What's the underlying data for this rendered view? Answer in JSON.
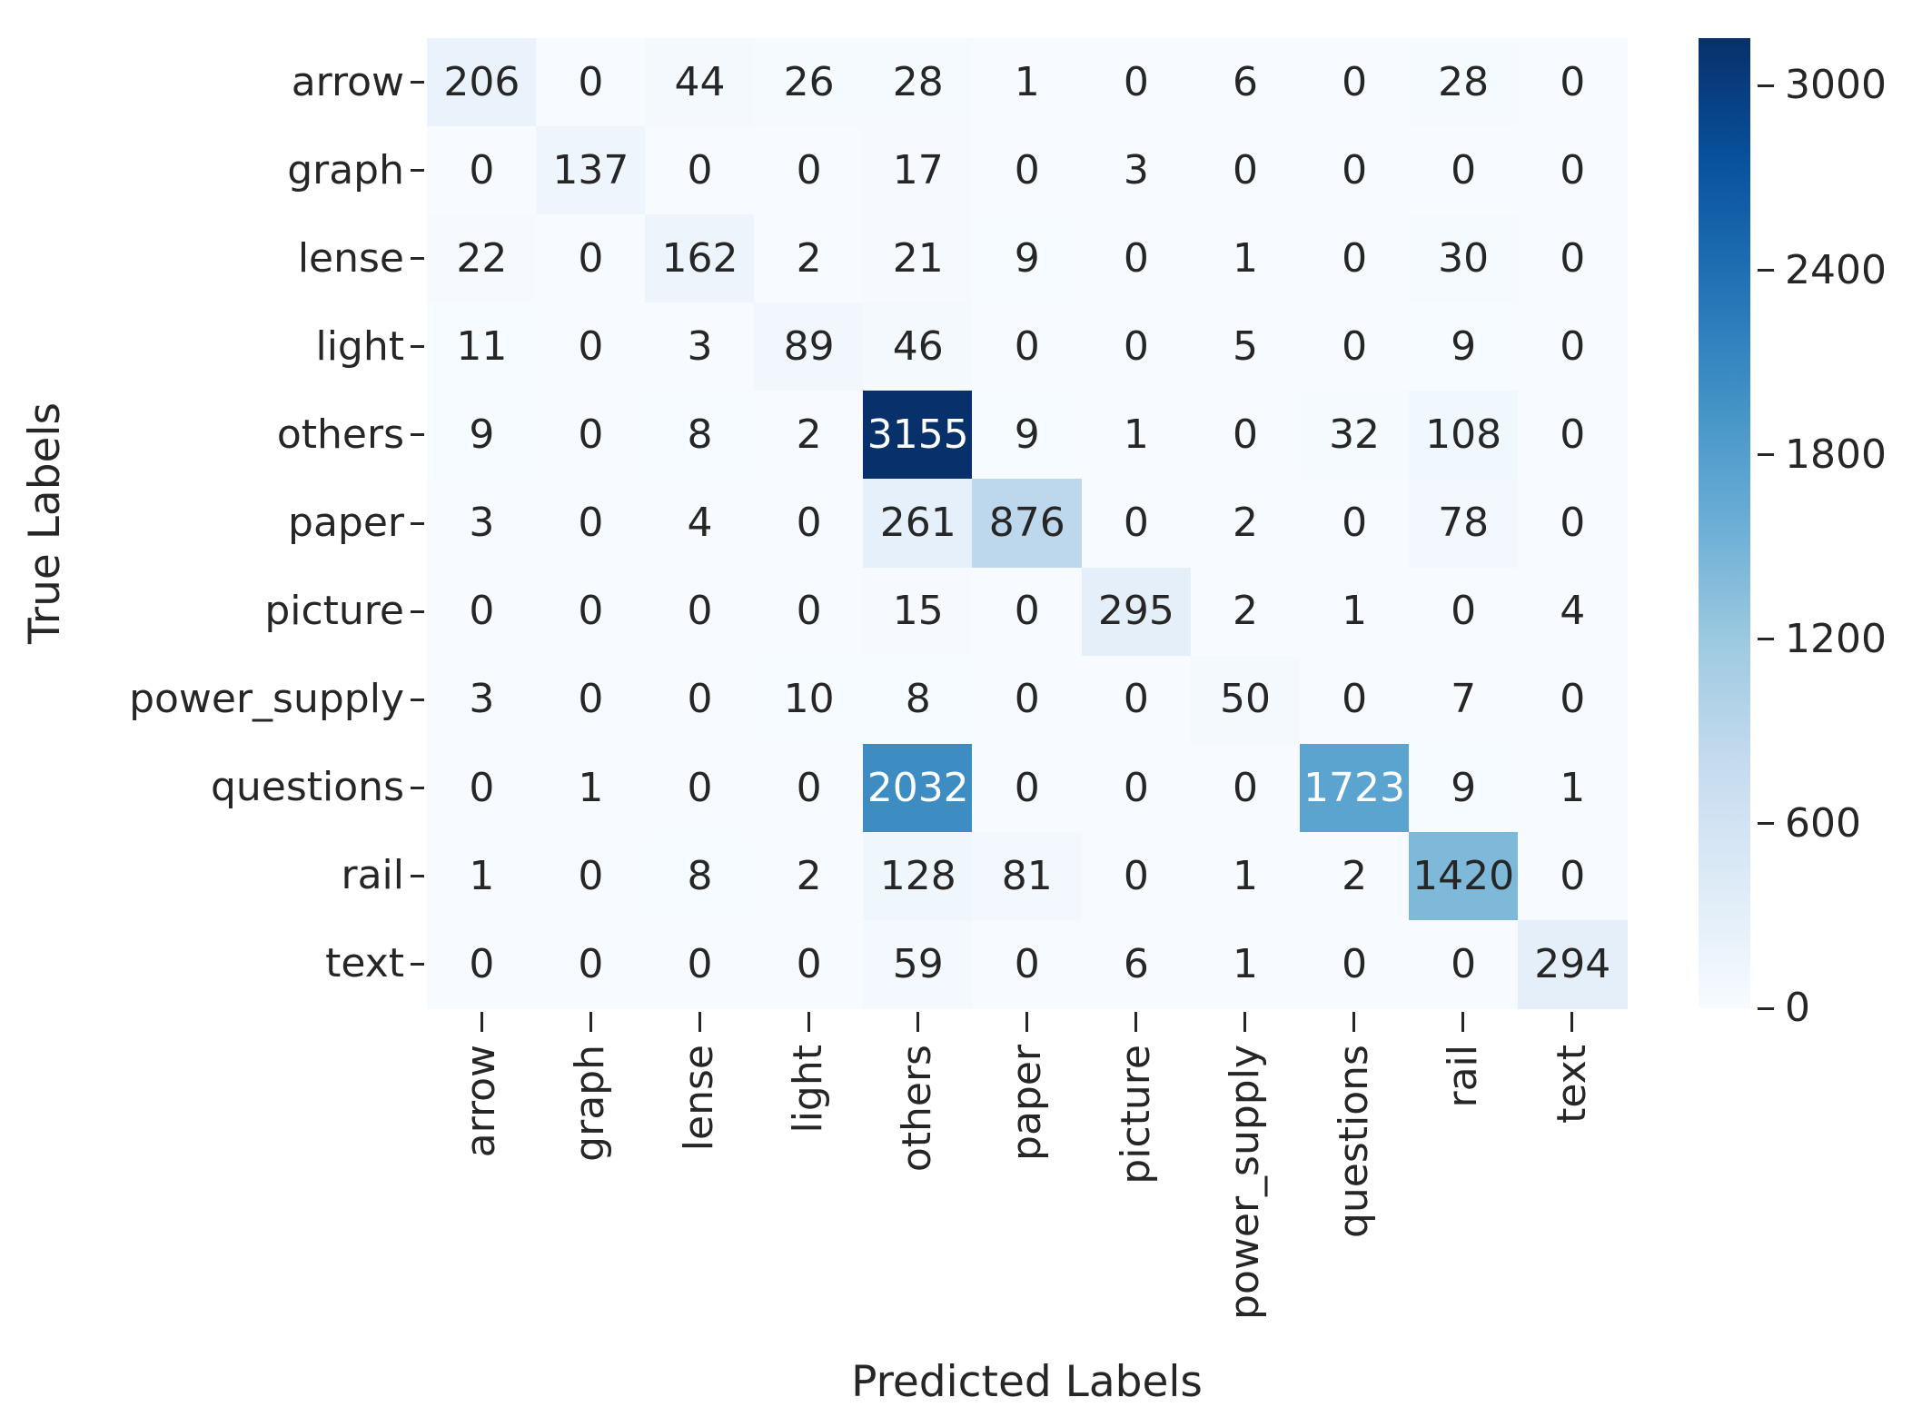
{
  "figure": {
    "background_color": "#ffffff",
    "text_color": "#262626"
  },
  "chart_data": {
    "type": "heatmap",
    "title": "",
    "xlabel": "Predicted Labels",
    "ylabel": "True Labels",
    "x_categories": [
      "arrow",
      "graph",
      "lense",
      "light",
      "others",
      "paper",
      "picture",
      "power_supply",
      "questions",
      "rail",
      "text"
    ],
    "y_categories": [
      "arrow",
      "graph",
      "lense",
      "light",
      "others",
      "paper",
      "picture",
      "power_supply",
      "questions",
      "rail",
      "text"
    ],
    "matrix": [
      [
        206,
        0,
        44,
        26,
        28,
        1,
        0,
        6,
        0,
        28,
        0
      ],
      [
        0,
        137,
        0,
        0,
        17,
        0,
        3,
        0,
        0,
        0,
        0
      ],
      [
        22,
        0,
        162,
        2,
        21,
        9,
        0,
        1,
        0,
        30,
        0
      ],
      [
        11,
        0,
        3,
        89,
        46,
        0,
        0,
        5,
        0,
        9,
        0
      ],
      [
        9,
        0,
        8,
        2,
        3155,
        9,
        1,
        0,
        32,
        108,
        0
      ],
      [
        3,
        0,
        4,
        0,
        261,
        876,
        0,
        2,
        0,
        78,
        0
      ],
      [
        0,
        0,
        0,
        0,
        15,
        0,
        295,
        2,
        1,
        0,
        4
      ],
      [
        3,
        0,
        0,
        10,
        8,
        0,
        0,
        50,
        0,
        7,
        0
      ],
      [
        0,
        1,
        0,
        0,
        2032,
        0,
        0,
        0,
        1723,
        9,
        1
      ],
      [
        1,
        0,
        8,
        2,
        128,
        81,
        0,
        1,
        2,
        1420,
        0
      ],
      [
        0,
        0,
        0,
        0,
        59,
        0,
        6,
        1,
        0,
        0,
        294
      ]
    ],
    "vmin": 0,
    "vmax": 3155,
    "colormap": "Blues",
    "colormap_stops": [
      "#f7fbff",
      "#deebf7",
      "#c6dbef",
      "#9ecae1",
      "#6baed6",
      "#4292c6",
      "#2171b5",
      "#08519c",
      "#08306b"
    ],
    "annotation_dark_text": "#262626",
    "annotation_light_text": "#ffffff",
    "grid": false,
    "legend_position": "right",
    "colorbar_ticks": [
      0,
      600,
      1200,
      1800,
      2400,
      3000
    ]
  }
}
